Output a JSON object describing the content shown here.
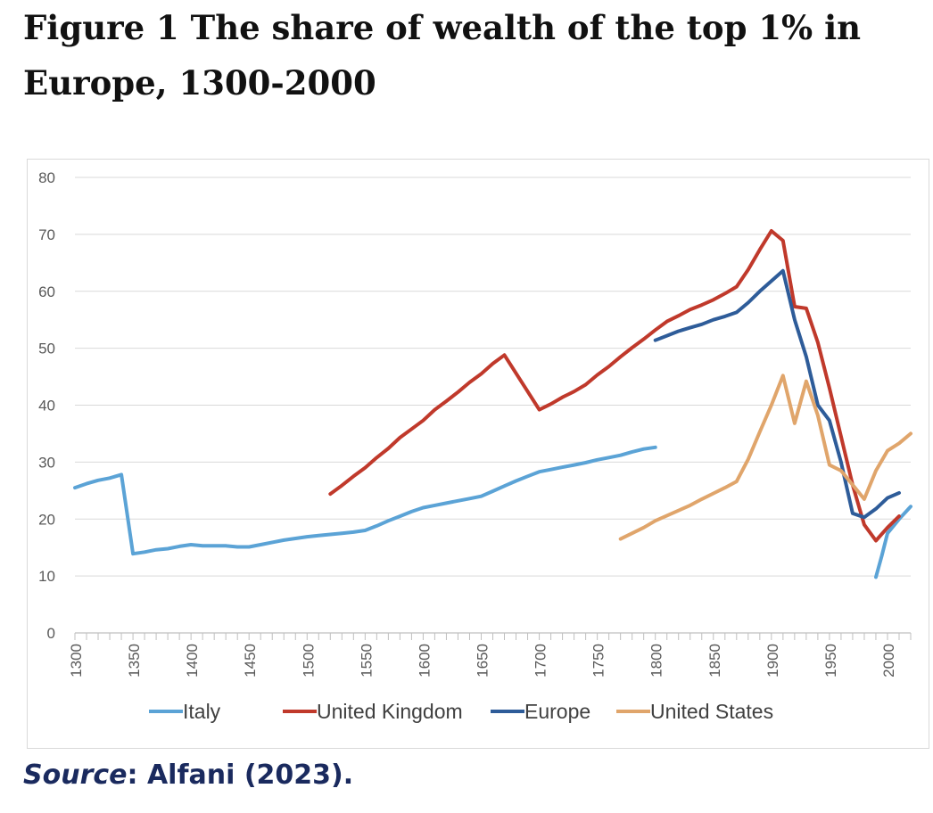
{
  "figure": {
    "title_lead": "Figure 1",
    "title_rest": "The share of wealth of the top 1% in Europe, 1300-2000"
  },
  "source": {
    "label": "Source",
    "text": ": Alfani (2023)."
  },
  "chart_data": {
    "type": "line",
    "title": "",
    "xlabel": "",
    "ylabel": "",
    "xlim": [
      1300,
      2020
    ],
    "ylim": [
      0,
      80
    ],
    "yticks": [
      0,
      10,
      20,
      30,
      40,
      50,
      60,
      70,
      80
    ],
    "xticks": [
      1300,
      1350,
      1400,
      1450,
      1500,
      1550,
      1600,
      1650,
      1700,
      1750,
      1800,
      1850,
      1900,
      1950,
      2000
    ],
    "grid": true,
    "legend": "bottom",
    "series": [
      {
        "name": "Italy",
        "color": "#5ba3d6",
        "points": [
          [
            1300,
            25.5
          ],
          [
            1310,
            26.2
          ],
          [
            1320,
            26.8
          ],
          [
            1330,
            27.2
          ],
          [
            1340,
            27.8
          ],
          [
            1350,
            13.9
          ],
          [
            1360,
            14.2
          ],
          [
            1370,
            14.6
          ],
          [
            1380,
            14.8
          ],
          [
            1390,
            15.2
          ],
          [
            1400,
            15.5
          ],
          [
            1410,
            15.3
          ],
          [
            1420,
            15.3
          ],
          [
            1430,
            15.3
          ],
          [
            1440,
            15.1
          ],
          [
            1450,
            15.1
          ],
          [
            1460,
            15.5
          ],
          [
            1470,
            15.9
          ],
          [
            1480,
            16.3
          ],
          [
            1490,
            16.6
          ],
          [
            1500,
            16.9
          ],
          [
            1510,
            17.1
          ],
          [
            1520,
            17.3
          ],
          [
            1530,
            17.5
          ],
          [
            1540,
            17.7
          ],
          [
            1550,
            18.0
          ],
          [
            1560,
            18.8
          ],
          [
            1570,
            19.7
          ],
          [
            1580,
            20.5
          ],
          [
            1590,
            21.3
          ],
          [
            1600,
            22.0
          ],
          [
            1610,
            22.4
          ],
          [
            1620,
            22.8
          ],
          [
            1630,
            23.2
          ],
          [
            1640,
            23.6
          ],
          [
            1650,
            24.0
          ],
          [
            1660,
            24.9
          ],
          [
            1670,
            25.8
          ],
          [
            1680,
            26.7
          ],
          [
            1690,
            27.5
          ],
          [
            1700,
            28.3
          ],
          [
            1710,
            28.7
          ],
          [
            1720,
            29.1
          ],
          [
            1730,
            29.5
          ],
          [
            1740,
            29.9
          ],
          [
            1750,
            30.4
          ],
          [
            1760,
            30.8
          ],
          [
            1770,
            31.2
          ],
          [
            1780,
            31.8
          ],
          [
            1790,
            32.3
          ],
          [
            1800,
            32.6
          ]
        ]
      },
      {
        "name": "Italy (modern)",
        "color": "#5ba3d6",
        "points": [
          [
            1990,
            9.8
          ],
          [
            1995,
            13.5
          ],
          [
            2000,
            17.5
          ],
          [
            2010,
            20.0
          ],
          [
            2020,
            22.2
          ]
        ]
      },
      {
        "name": "United Kingdom",
        "color": "#c0392b",
        "points": [
          [
            1520,
            24.4
          ],
          [
            1530,
            25.9
          ],
          [
            1540,
            27.5
          ],
          [
            1550,
            29.0
          ],
          [
            1560,
            30.8
          ],
          [
            1570,
            32.4
          ],
          [
            1580,
            34.3
          ],
          [
            1590,
            35.8
          ],
          [
            1600,
            37.3
          ],
          [
            1610,
            39.2
          ],
          [
            1620,
            40.7
          ],
          [
            1630,
            42.3
          ],
          [
            1640,
            44.0
          ],
          [
            1650,
            45.5
          ],
          [
            1660,
            47.3
          ],
          [
            1670,
            48.8
          ],
          [
            1700,
            39.2
          ],
          [
            1710,
            40.2
          ],
          [
            1720,
            41.4
          ],
          [
            1730,
            42.4
          ],
          [
            1740,
            43.6
          ],
          [
            1750,
            45.3
          ],
          [
            1760,
            46.8
          ],
          [
            1770,
            48.5
          ],
          [
            1780,
            50.1
          ],
          [
            1790,
            51.6
          ],
          [
            1800,
            53.2
          ],
          [
            1810,
            54.7
          ],
          [
            1820,
            55.7
          ],
          [
            1830,
            56.8
          ],
          [
            1840,
            57.6
          ],
          [
            1850,
            58.5
          ],
          [
            1860,
            59.6
          ],
          [
            1870,
            60.8
          ],
          [
            1880,
            63.8
          ],
          [
            1890,
            67.3
          ],
          [
            1900,
            70.6
          ],
          [
            1910,
            68.9
          ],
          [
            1920,
            57.3
          ],
          [
            1930,
            57.0
          ],
          [
            1940,
            51.0
          ],
          [
            1950,
            43.0
          ],
          [
            1960,
            34.5
          ],
          [
            1970,
            26.0
          ],
          [
            1980,
            19.0
          ],
          [
            1990,
            16.2
          ],
          [
            2000,
            18.5
          ],
          [
            2010,
            20.5
          ]
        ]
      },
      {
        "name": "Europe",
        "color": "#2e5c99",
        "points": [
          [
            1800,
            51.4
          ],
          [
            1810,
            52.2
          ],
          [
            1820,
            53.0
          ],
          [
            1830,
            53.6
          ],
          [
            1840,
            54.2
          ],
          [
            1850,
            55.0
          ],
          [
            1860,
            55.6
          ],
          [
            1870,
            56.3
          ],
          [
            1880,
            58.0
          ],
          [
            1890,
            60.0
          ],
          [
            1900,
            61.8
          ],
          [
            1910,
            63.6
          ],
          [
            1920,
            55.0
          ],
          [
            1930,
            48.5
          ],
          [
            1940,
            40.0
          ],
          [
            1950,
            37.3
          ],
          [
            1960,
            30.0
          ],
          [
            1970,
            21.0
          ],
          [
            1980,
            20.3
          ],
          [
            1990,
            21.8
          ],
          [
            2000,
            23.7
          ],
          [
            2010,
            24.6
          ]
        ]
      },
      {
        "name": "United States",
        "color": "#e0a56b",
        "points": [
          [
            1770,
            16.5
          ],
          [
            1780,
            17.5
          ],
          [
            1790,
            18.5
          ],
          [
            1800,
            19.7
          ],
          [
            1810,
            20.6
          ],
          [
            1820,
            21.5
          ],
          [
            1830,
            22.4
          ],
          [
            1840,
            23.5
          ],
          [
            1850,
            24.5
          ],
          [
            1860,
            25.5
          ],
          [
            1870,
            26.6
          ],
          [
            1880,
            30.5
          ],
          [
            1890,
            35.3
          ],
          [
            1900,
            40.0
          ],
          [
            1910,
            45.2
          ],
          [
            1920,
            36.8
          ],
          [
            1930,
            44.2
          ],
          [
            1940,
            38.2
          ],
          [
            1950,
            29.5
          ],
          [
            1960,
            28.5
          ],
          [
            1970,
            26.0
          ],
          [
            1980,
            23.5
          ],
          [
            1990,
            28.5
          ],
          [
            2000,
            32.0
          ],
          [
            2010,
            33.3
          ],
          [
            2020,
            35.0
          ]
        ]
      }
    ],
    "legend_entries": [
      {
        "name": "Italy",
        "color": "#5ba3d6"
      },
      {
        "name": "United Kingdom",
        "color": "#c0392b"
      },
      {
        "name": "Europe",
        "color": "#2e5c99"
      },
      {
        "name": "United States",
        "color": "#e0a56b"
      }
    ]
  }
}
